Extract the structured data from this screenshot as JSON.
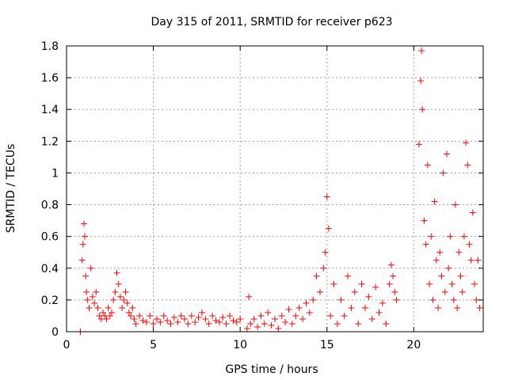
{
  "chart_data": {
    "type": "scatter",
    "title": "Day 315 of 2011, SRMTID for receiver p623",
    "xlabel": "GPS time / hours",
    "ylabel": "SRMTID / TECUs",
    "xlim": [
      0,
      24
    ],
    "ylim": [
      0,
      1.8
    ],
    "xticks": [
      0,
      5,
      10,
      15,
      20
    ],
    "xtick_labels": [
      "0",
      "5",
      "10",
      "15",
      "20"
    ],
    "yticks": [
      0,
      0.2,
      0.4,
      0.6,
      0.8,
      1.0,
      1.2,
      1.4,
      1.6,
      1.8
    ],
    "ytick_labels": [
      "0",
      "0.2",
      "0.4",
      "0.6",
      "0.8",
      "1",
      "1.2",
      "1.4",
      "1.6",
      "1.8"
    ],
    "grid": true,
    "marker": "+",
    "marker_color": "#ff0000",
    "series": [
      {
        "name": "SRMTID",
        "x": [
          0.8,
          0.9,
          0.95,
          1.0,
          1.05,
          1.1,
          1.15,
          1.2,
          1.3,
          1.4,
          1.5,
          1.6,
          1.7,
          1.8,
          1.9,
          2.0,
          2.1,
          2.2,
          2.3,
          2.4,
          2.5,
          2.6,
          2.7,
          2.8,
          2.9,
          3.0,
          3.1,
          3.2,
          3.3,
          3.4,
          3.5,
          3.6,
          3.7,
          3.8,
          3.9,
          4.0,
          4.2,
          4.4,
          4.6,
          4.8,
          5.0,
          5.2,
          5.4,
          5.6,
          5.8,
          6.0,
          6.2,
          6.4,
          6.6,
          6.8,
          7.0,
          7.2,
          7.4,
          7.6,
          7.8,
          8.0,
          8.2,
          8.4,
          8.6,
          8.8,
          9.0,
          9.2,
          9.4,
          9.6,
          9.8,
          10.0,
          10.4,
          10.5,
          10.6,
          10.8,
          11.0,
          11.2,
          11.4,
          11.6,
          11.8,
          12.0,
          12.2,
          12.4,
          12.6,
          12.8,
          13.0,
          13.2,
          13.4,
          13.6,
          13.8,
          14.0,
          14.2,
          14.4,
          14.6,
          14.8,
          14.9,
          15.0,
          15.1,
          15.2,
          15.4,
          15.6,
          15.8,
          16.0,
          16.2,
          16.4,
          16.6,
          16.8,
          17.0,
          17.2,
          17.4,
          17.6,
          17.8,
          18.0,
          18.2,
          18.4,
          18.6,
          18.7,
          18.8,
          18.9,
          19.0,
          20.3,
          20.4,
          20.45,
          20.5,
          20.6,
          20.7,
          20.8,
          20.9,
          21.0,
          21.1,
          21.2,
          21.3,
          21.4,
          21.5,
          21.6,
          21.7,
          21.8,
          21.9,
          22.0,
          22.1,
          22.2,
          22.3,
          22.4,
          22.5,
          22.6,
          22.7,
          22.8,
          22.9,
          23.0,
          23.1,
          23.2,
          23.3,
          23.4,
          23.5,
          23.6,
          23.7,
          23.8
        ],
        "y": [
          0.0,
          0.45,
          0.55,
          0.68,
          0.6,
          0.35,
          0.25,
          0.2,
          0.15,
          0.4,
          0.22,
          0.18,
          0.25,
          0.15,
          0.1,
          0.08,
          0.12,
          0.1,
          0.08,
          0.15,
          0.1,
          0.12,
          0.2,
          0.25,
          0.37,
          0.3,
          0.22,
          0.15,
          0.2,
          0.25,
          0.18,
          0.12,
          0.1,
          0.15,
          0.08,
          0.05,
          0.1,
          0.07,
          0.06,
          0.1,
          0.05,
          0.08,
          0.06,
          0.1,
          0.07,
          0.05,
          0.09,
          0.06,
          0.1,
          0.08,
          0.05,
          0.1,
          0.06,
          0.09,
          0.12,
          0.08,
          0.05,
          0.1,
          0.07,
          0.06,
          0.09,
          0.05,
          0.1,
          0.07,
          0.06,
          0.08,
          0.02,
          0.22,
          0.05,
          0.08,
          0.03,
          0.1,
          0.05,
          0.12,
          0.04,
          0.08,
          0.02,
          0.1,
          0.06,
          0.14,
          0.05,
          0.1,
          0.15,
          0.08,
          0.18,
          0.12,
          0.2,
          0.35,
          0.25,
          0.4,
          0.5,
          0.85,
          0.65,
          0.1,
          0.3,
          0.05,
          0.2,
          0.1,
          0.35,
          0.15,
          0.25,
          0.05,
          0.3,
          0.15,
          0.22,
          0.08,
          0.28,
          0.12,
          0.18,
          0.05,
          0.3,
          0.42,
          0.35,
          0.25,
          0.2,
          1.18,
          1.58,
          1.77,
          1.4,
          0.7,
          0.55,
          1.05,
          0.3,
          0.6,
          0.2,
          0.82,
          0.45,
          0.15,
          0.5,
          0.35,
          1.0,
          0.25,
          1.12,
          0.4,
          0.6,
          0.3,
          0.2,
          0.8,
          0.15,
          0.5,
          0.35,
          0.25,
          0.6,
          1.19,
          1.05,
          0.55,
          0.45,
          0.75,
          0.3,
          0.2,
          0.45,
          0.15
        ]
      }
    ]
  }
}
